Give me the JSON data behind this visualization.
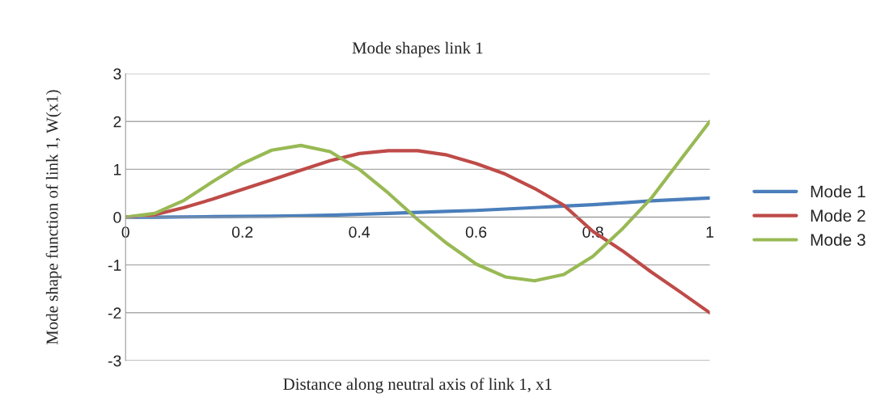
{
  "chart_data": {
    "type": "line",
    "title": "Mode shapes link 1",
    "xlabel": "Distance along neutral axis of link 1, x1",
    "ylabel": "Mode shape function of link 1, W(x1)",
    "x": [
      0,
      0.05,
      0.1,
      0.15,
      0.2,
      0.25,
      0.3,
      0.35,
      0.4,
      0.45,
      0.5,
      0.55,
      0.6,
      0.65,
      0.7,
      0.75,
      0.8,
      0.85,
      0.9,
      0.95,
      1
    ],
    "series": [
      {
        "name": "Mode 1",
        "color": "#4a7ebb",
        "values": [
          0,
          0,
          0.005,
          0.01,
          0.015,
          0.02,
          0.03,
          0.04,
          0.06,
          0.08,
          0.1,
          0.12,
          0.14,
          0.17,
          0.2,
          0.23,
          0.26,
          0.3,
          0.34,
          0.37,
          0.4
        ]
      },
      {
        "name": "Mode 2",
        "color": "#be4b48",
        "values": [
          0,
          0.05,
          0.2,
          0.38,
          0.58,
          0.78,
          0.98,
          1.18,
          1.33,
          1.39,
          1.39,
          1.3,
          1.12,
          0.9,
          0.6,
          0.25,
          -0.3,
          -0.7,
          -1.15,
          -1.57,
          -2
        ]
      },
      {
        "name": "Mode 3",
        "color": "#98b954",
        "values": [
          0,
          0.08,
          0.35,
          0.75,
          1.12,
          1.4,
          1.5,
          1.37,
          1.0,
          0.5,
          -0.05,
          -0.55,
          -0.98,
          -1.25,
          -1.33,
          -1.2,
          -0.82,
          -0.25,
          0.4,
          1.2,
          2.0
        ]
      }
    ],
    "xlim": [
      0,
      1
    ],
    "xticks": [
      0,
      0.2,
      0.4,
      0.6,
      0.8,
      1
    ],
    "ylim": [
      -3,
      3
    ],
    "yticks": [
      -3,
      -2,
      -1,
      0,
      1,
      2,
      3
    ],
    "grid": "y",
    "legend": "right",
    "line_style": "solid",
    "marker": "none"
  }
}
